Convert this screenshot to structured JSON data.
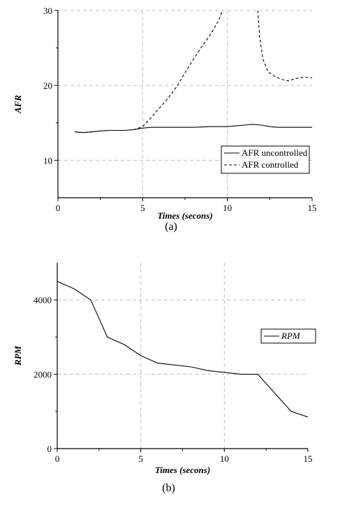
{
  "chart_data": [
    {
      "type": "line",
      "title": "",
      "xlabel": "Times (secons)",
      "ylabel": "AFR",
      "xlim": [
        0,
        15
      ],
      "ylim": [
        5,
        30
      ],
      "xticks": [
        0,
        5,
        10,
        15
      ],
      "yticks": [
        10,
        20,
        30
      ],
      "grid": true,
      "legend_position": "bottom-right",
      "series": [
        {
          "name": "AFR uncontrolled",
          "style": "solid",
          "x": [
            1,
            1.5,
            2,
            2.5,
            3,
            3.5,
            4,
            4.5,
            5,
            5.5,
            6,
            7,
            8,
            9,
            10,
            10.5,
            11,
            11.5,
            12,
            12.5,
            13,
            14,
            15
          ],
          "y": [
            13.8,
            13.7,
            13.8,
            13.9,
            14.0,
            14.0,
            14.0,
            14.1,
            14.3,
            14.4,
            14.4,
            14.4,
            14.4,
            14.5,
            14.5,
            14.6,
            14.7,
            14.8,
            14.7,
            14.5,
            14.4,
            14.4,
            14.4
          ]
        },
        {
          "name": "AFR controlled",
          "style": "dashed",
          "segments": [
            {
              "x": [
                1,
                1.5,
                2,
                2.5,
                3,
                3.5,
                4,
                4.5,
                5,
                5.5,
                6,
                6.5,
                7,
                7.5,
                8,
                8.5,
                9,
                9.5,
                9.7
              ],
              "y": [
                13.8,
                13.7,
                13.8,
                13.9,
                14.0,
                14.0,
                14.0,
                14.1,
                14.5,
                15.7,
                17.0,
                18.3,
                19.8,
                21.7,
                23.5,
                25.2,
                26.8,
                28.7,
                30.0
              ]
            },
            {
              "x": [
                11.8,
                11.9,
                12.1,
                12.4,
                12.8,
                13.2,
                13.6,
                14.0,
                14.5,
                15.0
              ],
              "y": [
                30.0,
                26.5,
                23.5,
                21.8,
                21.2,
                20.8,
                20.6,
                20.9,
                21.1,
                21.0
              ]
            }
          ]
        }
      ],
      "caption": "(a)"
    },
    {
      "type": "line",
      "title": "",
      "xlabel": "Times (secons)",
      "ylabel": "RPM",
      "xlim": [
        0,
        15
      ],
      "ylim": [
        0,
        5000
      ],
      "xticks": [
        0,
        5,
        10,
        15
      ],
      "yticks": [
        0,
        2000,
        4000
      ],
      "grid": true,
      "legend_position": "right",
      "series": [
        {
          "name": "RPM",
          "style": "solid",
          "x": [
            0,
            1,
            2,
            3,
            4,
            5,
            6,
            7,
            8,
            9,
            10,
            11,
            12,
            13,
            14,
            15
          ],
          "y": [
            4500,
            4300,
            4000,
            3000,
            2800,
            2500,
            2300,
            2250,
            2200,
            2100,
            2050,
            2000,
            2000,
            1500,
            1000,
            850
          ]
        }
      ],
      "caption": "(b)"
    }
  ]
}
